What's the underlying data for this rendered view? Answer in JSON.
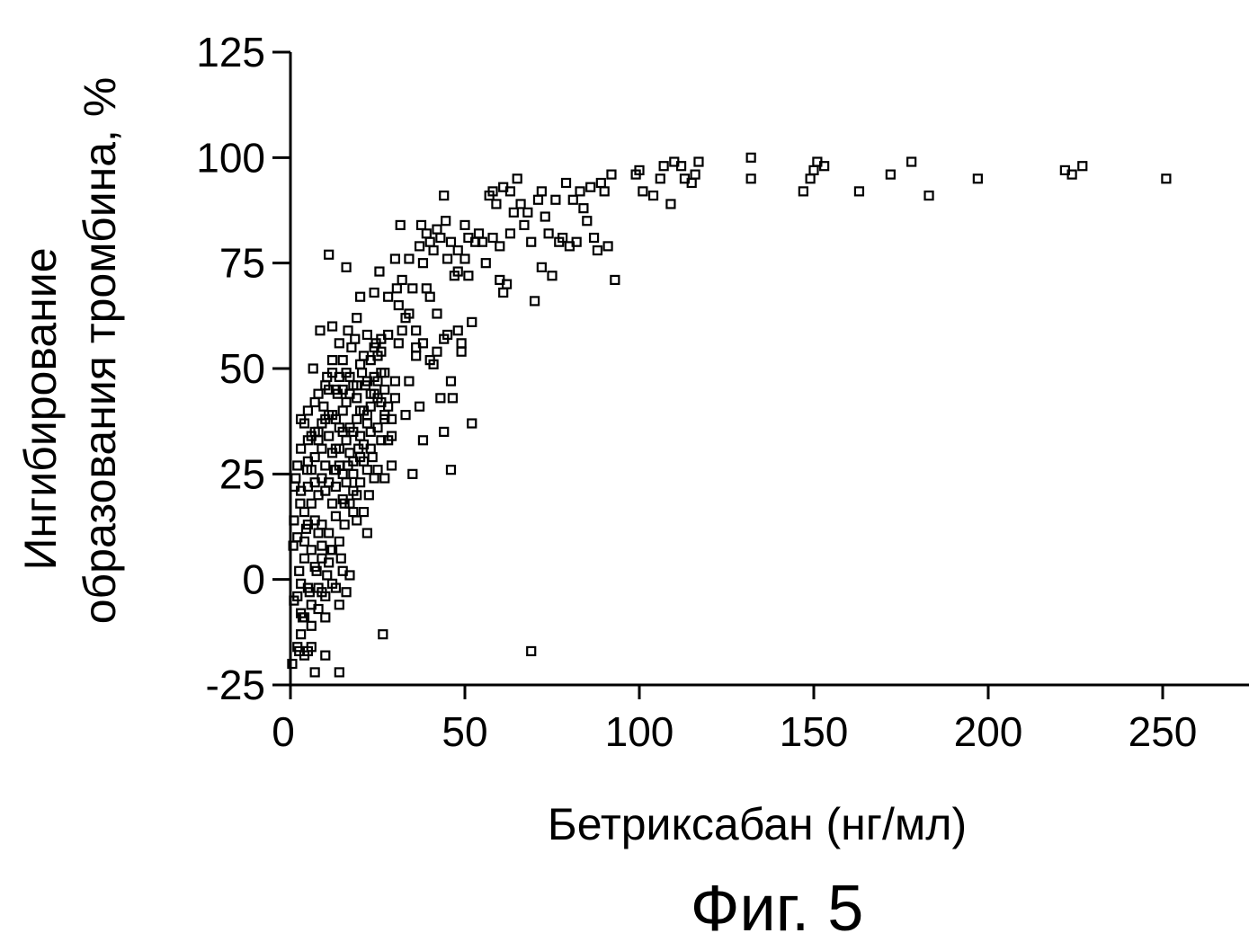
{
  "chart_data": {
    "type": "scatter",
    "xlabel": "Бетриксабан (нг/мл)",
    "ylabel_line1": "Ингибирование",
    "ylabel_line2": "образования тромбина, %",
    "caption": "Фиг. 5",
    "xlim": [
      0,
      270
    ],
    "ylim": [
      -25,
      125
    ],
    "xticks": [
      0,
      50,
      100,
      150,
      200,
      250
    ],
    "yticks": [
      -25,
      0,
      25,
      50,
      75,
      100,
      125
    ],
    "xtick_labels": [
      "0",
      "50",
      "100",
      "150",
      "200",
      "250"
    ],
    "ytick_labels": [
      "-25",
      "0",
      "25",
      "50",
      "75",
      "100",
      "125"
    ],
    "grid": false,
    "marker": "open-square",
    "points": [
      [
        0.5,
        -20
      ],
      [
        1,
        -5
      ],
      [
        0.8,
        8
      ],
      [
        1.2,
        22
      ],
      [
        1.5,
        24
      ],
      [
        2,
        -16
      ],
      [
        2.5,
        -17
      ],
      [
        2.5,
        2
      ],
      [
        2.8,
        18
      ],
      [
        3,
        38
      ],
      [
        3,
        -8
      ],
      [
        3.5,
        -9
      ],
      [
        4,
        -18
      ],
      [
        4,
        5
      ],
      [
        4.5,
        12
      ],
      [
        4.8,
        26
      ],
      [
        5,
        -17
      ],
      [
        5,
        40
      ],
      [
        5.5,
        -3
      ],
      [
        6,
        -16
      ],
      [
        6,
        34
      ],
      [
        6.5,
        50
      ],
      [
        7,
        14
      ],
      [
        7,
        -22
      ],
      [
        7.5,
        2
      ],
      [
        8,
        -2
      ],
      [
        8,
        20
      ],
      [
        8.5,
        59
      ],
      [
        9,
        -3
      ],
      [
        9,
        8
      ],
      [
        9.5,
        41
      ],
      [
        10,
        -4
      ],
      [
        10,
        27
      ],
      [
        10,
        -18
      ],
      [
        10.5,
        48
      ],
      [
        10.5,
        1
      ],
      [
        11,
        77
      ],
      [
        11,
        34
      ],
      [
        11.5,
        7
      ],
      [
        12,
        52
      ],
      [
        12,
        -1
      ],
      [
        12,
        60
      ],
      [
        12.5,
        26
      ],
      [
        13,
        38
      ],
      [
        13,
        15
      ],
      [
        13.5,
        44
      ],
      [
        14,
        56
      ],
      [
        14,
        -22
      ],
      [
        14,
        31
      ],
      [
        14.5,
        5
      ],
      [
        15,
        25
      ],
      [
        15,
        40
      ],
      [
        15.5,
        13
      ],
      [
        15.5,
        18
      ],
      [
        16,
        74
      ],
      [
        16,
        -3
      ],
      [
        16.5,
        27
      ],
      [
        16.5,
        59
      ],
      [
        17,
        44
      ],
      [
        17,
        1
      ],
      [
        17.5,
        55
      ],
      [
        18,
        46
      ],
      [
        18,
        35
      ],
      [
        18.5,
        57
      ],
      [
        19,
        62
      ],
      [
        19,
        20
      ],
      [
        19.5,
        31
      ],
      [
        20,
        40
      ],
      [
        20,
        67
      ],
      [
        20.5,
        49
      ],
      [
        21,
        16
      ],
      [
        21,
        40
      ],
      [
        21.5,
        46
      ],
      [
        22,
        58
      ],
      [
        22,
        11
      ],
      [
        22.5,
        20
      ],
      [
        23,
        52
      ],
      [
        23,
        35
      ],
      [
        23.5,
        29
      ],
      [
        24,
        68
      ],
      [
        24,
        48
      ],
      [
        24.5,
        56
      ],
      [
        25,
        43
      ],
      [
        25,
        26
      ],
      [
        25.5,
        73
      ],
      [
        26,
        54
      ],
      [
        26,
        33
      ],
      [
        26.5,
        -13
      ],
      [
        27,
        39
      ],
      [
        27,
        24
      ],
      [
        28,
        67
      ],
      [
        28,
        58
      ],
      [
        29,
        34
      ],
      [
        29,
        27
      ],
      [
        30,
        47
      ],
      [
        30,
        76
      ],
      [
        30.5,
        69
      ],
      [
        31,
        56
      ],
      [
        31,
        65
      ],
      [
        31.5,
        84
      ],
      [
        32,
        59
      ],
      [
        32,
        71
      ],
      [
        33,
        39
      ],
      [
        33,
        62
      ],
      [
        34,
        63
      ],
      [
        34,
        76
      ],
      [
        35,
        25
      ],
      [
        35,
        69
      ],
      [
        36,
        55
      ],
      [
        36,
        59
      ],
      [
        37,
        41
      ],
      [
        37,
        79
      ],
      [
        37.5,
        84
      ],
      [
        38,
        75
      ],
      [
        38,
        33
      ],
      [
        39,
        82
      ],
      [
        39,
        69
      ],
      [
        40,
        52
      ],
      [
        40,
        80
      ],
      [
        41,
        78
      ],
      [
        41,
        51
      ],
      [
        42,
        83
      ],
      [
        42,
        54
      ],
      [
        43,
        43
      ],
      [
        43,
        81
      ],
      [
        44,
        35
      ],
      [
        44,
        91
      ],
      [
        44.5,
        85
      ],
      [
        45,
        58
      ],
      [
        45,
        76
      ],
      [
        46,
        80
      ],
      [
        46,
        26
      ],
      [
        46.5,
        43
      ],
      [
        47,
        72
      ],
      [
        48,
        78
      ],
      [
        48,
        73
      ],
      [
        49,
        54
      ],
      [
        49,
        56
      ],
      [
        50,
        84
      ],
      [
        50,
        76
      ],
      [
        51,
        72
      ],
      [
        51,
        81
      ],
      [
        52,
        61
      ],
      [
        52,
        37
      ],
      [
        53,
        80
      ],
      [
        54,
        82
      ],
      [
        55,
        80
      ],
      [
        56,
        75
      ],
      [
        57,
        91
      ],
      [
        58,
        81
      ],
      [
        58,
        92
      ],
      [
        59,
        89
      ],
      [
        60,
        71
      ],
      [
        60,
        79
      ],
      [
        61,
        68
      ],
      [
        61,
        93
      ],
      [
        62,
        70
      ],
      [
        63,
        82
      ],
      [
        63,
        92
      ],
      [
        64,
        87
      ],
      [
        65,
        95
      ],
      [
        66,
        89
      ],
      [
        67,
        84
      ],
      [
        68,
        87
      ],
      [
        69,
        -17
      ],
      [
        69,
        80
      ],
      [
        70,
        66
      ],
      [
        71,
        90
      ],
      [
        72,
        92
      ],
      [
        72,
        74
      ],
      [
        73,
        86
      ],
      [
        74,
        82
      ],
      [
        75,
        72
      ],
      [
        76,
        90
      ],
      [
        77,
        80
      ],
      [
        78,
        81
      ],
      [
        79,
        94
      ],
      [
        80,
        79
      ],
      [
        81,
        90
      ],
      [
        82,
        80
      ],
      [
        83,
        92
      ],
      [
        84,
        88
      ],
      [
        85,
        85
      ],
      [
        86,
        93
      ],
      [
        87,
        81
      ],
      [
        88,
        78
      ],
      [
        89,
        94
      ],
      [
        90,
        92
      ],
      [
        91,
        79
      ],
      [
        92,
        96
      ],
      [
        93,
        71
      ],
      [
        99,
        96
      ],
      [
        100,
        97
      ],
      [
        101,
        92
      ],
      [
        104,
        91
      ],
      [
        106,
        95
      ],
      [
        107,
        98
      ],
      [
        109,
        89
      ],
      [
        110,
        99
      ],
      [
        112,
        98
      ],
      [
        113,
        95
      ],
      [
        115,
        94
      ],
      [
        116,
        96
      ],
      [
        117,
        99
      ],
      [
        132,
        100
      ],
      [
        132,
        95
      ],
      [
        147,
        92
      ],
      [
        149,
        95
      ],
      [
        150,
        97
      ],
      [
        151,
        99
      ],
      [
        153,
        98
      ],
      [
        163,
        92
      ],
      [
        172,
        96
      ],
      [
        178,
        99
      ],
      [
        183,
        91
      ],
      [
        197,
        95
      ],
      [
        222,
        97
      ],
      [
        224,
        96
      ],
      [
        227,
        98
      ],
      [
        251,
        95
      ],
      [
        1,
        14
      ],
      [
        2,
        27
      ],
      [
        3,
        31
      ],
      [
        4,
        9
      ],
      [
        5,
        22
      ],
      [
        6,
        18
      ],
      [
        7,
        29
      ],
      [
        8,
        35
      ],
      [
        9,
        13
      ],
      [
        10,
        21
      ],
      [
        11,
        11
      ],
      [
        12,
        30
      ],
      [
        13,
        22
      ],
      [
        14,
        9
      ],
      [
        15,
        35
      ],
      [
        16,
        23
      ],
      [
        17,
        30
      ],
      [
        18,
        28
      ],
      [
        19,
        38
      ],
      [
        20,
        23
      ],
      [
        21,
        28
      ],
      [
        22,
        39
      ],
      [
        23,
        44
      ],
      [
        24,
        24
      ],
      [
        25,
        47
      ],
      [
        26,
        42
      ],
      [
        27,
        49
      ],
      [
        28,
        33
      ],
      [
        5,
        28
      ],
      [
        6,
        7
      ],
      [
        7,
        23
      ],
      [
        8,
        11
      ],
      [
        9,
        37
      ],
      [
        11,
        39
      ],
      [
        12,
        18
      ],
      [
        13,
        45
      ],
      [
        14,
        27
      ],
      [
        15,
        45
      ],
      [
        16,
        33
      ],
      [
        17,
        48
      ],
      [
        18,
        25
      ],
      [
        19,
        43
      ],
      [
        20,
        34
      ],
      [
        22,
        26
      ],
      [
        23,
        31
      ],
      [
        3,
        -1
      ],
      [
        4,
        37
      ],
      [
        5,
        13
      ],
      [
        6,
        -6
      ],
      [
        7,
        42
      ],
      [
        8,
        33
      ],
      [
        9,
        24
      ],
      [
        10,
        46
      ],
      [
        11,
        23
      ],
      [
        12,
        39
      ],
      [
        13,
        31
      ],
      [
        14,
        36
      ],
      [
        15,
        19
      ],
      [
        16,
        42
      ],
      [
        17,
        36
      ],
      [
        18,
        16
      ],
      [
        19,
        46
      ],
      [
        20,
        51
      ],
      [
        21,
        53
      ],
      [
        22,
        37
      ],
      [
        24,
        44
      ],
      [
        25,
        53
      ],
      [
        26,
        49
      ],
      [
        27,
        45
      ],
      [
        28,
        41
      ],
      [
        29,
        38
      ],
      [
        30,
        43
      ],
      [
        34,
        47
      ],
      [
        36,
        53
      ],
      [
        38,
        56
      ],
      [
        40,
        67
      ],
      [
        42,
        63
      ],
      [
        44,
        57
      ],
      [
        46,
        47
      ],
      [
        48,
        59
      ],
      [
        2,
        -4
      ],
      [
        3,
        -13
      ],
      [
        4,
        -9
      ],
      [
        5,
        -2
      ],
      [
        6,
        -11
      ],
      [
        7,
        3
      ],
      [
        8,
        -7
      ],
      [
        9,
        5
      ],
      [
        10,
        -9
      ],
      [
        11,
        4
      ],
      [
        12,
        7
      ],
      [
        13,
        -2
      ],
      [
        14,
        -6
      ],
      [
        15,
        2
      ],
      [
        2,
        10
      ],
      [
        3,
        21
      ],
      [
        4,
        16
      ],
      [
        5,
        33
      ],
      [
        6,
        26
      ],
      [
        7,
        35
      ],
      [
        8,
        44
      ],
      [
        9,
        31
      ],
      [
        10,
        38
      ],
      [
        11,
        45
      ],
      [
        12,
        49
      ],
      [
        13,
        26
      ],
      [
        14,
        48
      ],
      [
        15,
        52
      ],
      [
        16,
        49
      ],
      [
        17,
        18
      ],
      [
        18,
        21
      ],
      [
        19,
        14
      ],
      [
        20,
        29
      ],
      [
        21,
        32
      ],
      [
        22,
        47
      ],
      [
        23,
        41
      ],
      [
        24,
        55
      ],
      [
        25,
        36
      ],
      [
        26,
        57
      ],
      [
        27,
        38
      ]
    ]
  }
}
